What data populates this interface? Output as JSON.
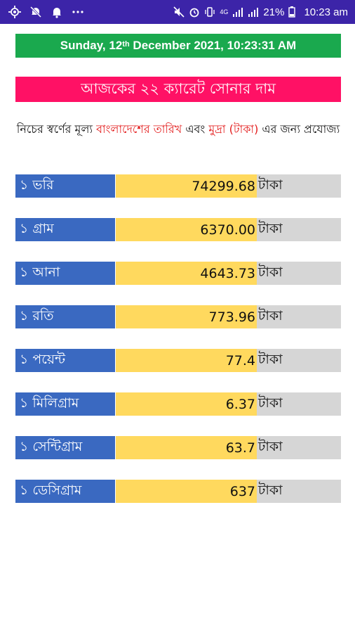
{
  "status_bar": {
    "left_icons": [
      "crosshair-icon",
      "notification-muted-icon",
      "bell-icon",
      "more-dots-icon"
    ],
    "network_label": "4G",
    "battery_percent": "21%",
    "time": "10:23 am"
  },
  "date_banner": {
    "weekday": "Sunday, 12",
    "ordinal_suffix": "th",
    "rest": " December 2021, 10:23:31 AM"
  },
  "title": "আজকের ২২ ক্যারেট সোনার দাম",
  "note": {
    "part1": "নিচের স্বর্ণের মূল্য ",
    "highlight1": "বাংলাদেশের তারিখ",
    "part2": " এবং ",
    "highlight2": "মুদ্রা (টাকা)",
    "part3": " এর জন্য প্রযোজ্য"
  },
  "rates": [
    {
      "unit": "১ ভরি",
      "value": "74299.68",
      "currency": "টাকা"
    },
    {
      "unit": "১ গ্রাম",
      "value": "6370.00",
      "currency": "টাকা"
    },
    {
      "unit": "১ আনা",
      "value": "4643.73",
      "currency": "টাকা"
    },
    {
      "unit": "১ রতি",
      "value": "773.96",
      "currency": "টাকা"
    },
    {
      "unit": "১ পয়েন্ট",
      "value": "77.4",
      "currency": "টাকা"
    },
    {
      "unit": "১ মিলিগ্রাম",
      "value": "6.37",
      "currency": "টাকা"
    },
    {
      "unit": "১ সেন্টিগ্রাম",
      "value": "63.7",
      "currency": "টাকা"
    },
    {
      "unit": "১ ডেসিগ্রাম",
      "value": "637",
      "currency": "টাকা"
    }
  ],
  "colors": {
    "status_bar": "#3c24a8",
    "date_banner": "#1aa94e",
    "title_banner": "#ff1165",
    "unit_cell": "#3a69c1",
    "value_cell": "#ffd95e",
    "currency_cell": "#d6d6d6",
    "highlight_text": "#e31b1b"
  }
}
